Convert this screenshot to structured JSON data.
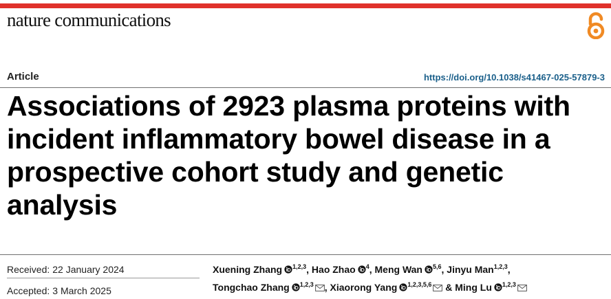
{
  "journal": "nature communications",
  "article_type": "Article",
  "doi": "https://doi.org/10.1038/s41467-025-57879-3",
  "title": "Associations of 2923 plasma proteins with incident inflammatory bowel disease in a prospective cohort study and genetic analysis",
  "dates": {
    "received_label": "Received:",
    "received": "22 January 2024",
    "accepted_label": "Accepted:",
    "accepted": "3 March 2025"
  },
  "authors": [
    {
      "name": "Xuening Zhang",
      "affil": "1,2,3"
    },
    {
      "name": "Hao Zhao",
      "affil": "4"
    },
    {
      "name": "Meng Wan",
      "affil": "5,6"
    },
    {
      "name": "Jinyu Man",
      "affil": "1,2,3"
    },
    {
      "name": "Tongchao Zhang",
      "affil": "1,2,3"
    },
    {
      "name": "Xiaorong Yang",
      "affil": "1,2,3,5,6"
    },
    {
      "name": "Ming Lu",
      "affil": "1,2,3"
    }
  ],
  "separators": {
    "comma": ",",
    "and": "& "
  },
  "colors": {
    "accent_bar": "#e0312b",
    "oa_icon": "#f08a24",
    "doi_link": "#1a5f8a",
    "text": "#111111"
  },
  "icons": {
    "open_access": "open-access-lock-icon",
    "orcid": "orcid-icon",
    "email": "email-icon"
  }
}
